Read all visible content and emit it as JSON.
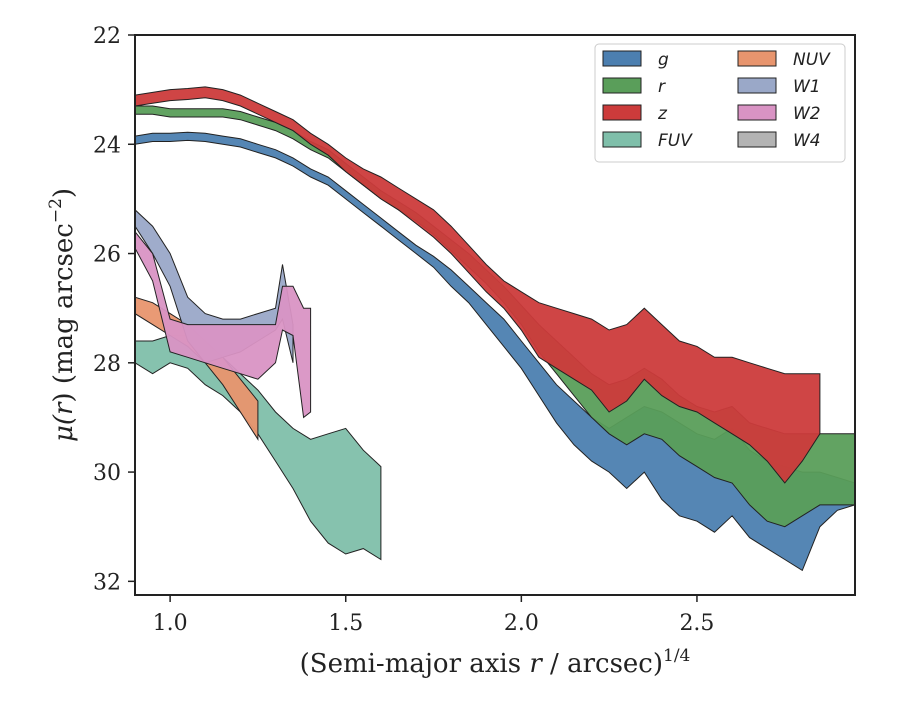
{
  "chart_data": {
    "type": "area",
    "xlabel": "(Semi-major axis r / arcsec)^1/4",
    "xlabel_parts": {
      "pre": "(Semi-major axis ",
      "var": "r",
      "post": " / arcsec)",
      "sup": "1/4"
    },
    "ylabel": "μ(r) (mag arcsec−2)",
    "ylabel_parts": {
      "mu": "μ(",
      "var": "r",
      "post": ") (mag arcsec",
      "sup": "−2",
      "close": ")"
    },
    "xlim": [
      0.9,
      2.95
    ],
    "ylim": [
      32.25,
      22
    ],
    "y_inverted": true,
    "xticks": [
      1.0,
      1.5,
      2.0,
      2.5
    ],
    "xtick_labels": [
      "1.0",
      "1.5",
      "2.0",
      "2.5"
    ],
    "yticks": [
      22,
      24,
      26,
      28,
      30,
      32
    ],
    "ytick_labels": [
      "22",
      "24",
      "26",
      "28",
      "30",
      "32"
    ],
    "grid": false,
    "legend_placement": "top-right",
    "legend_columns": 2,
    "series": [
      {
        "name": "g",
        "color": "#4c7fb0",
        "x": [
          0.9,
          0.95,
          1.0,
          1.05,
          1.1,
          1.15,
          1.2,
          1.25,
          1.3,
          1.35,
          1.4,
          1.45,
          1.5,
          1.55,
          1.6,
          1.65,
          1.7,
          1.75,
          1.8,
          1.85,
          1.9,
          1.95,
          2.0,
          2.05,
          2.1,
          2.15,
          2.2,
          2.25,
          2.3,
          2.35,
          2.4,
          2.45,
          2.5,
          2.55,
          2.6,
          2.65,
          2.7,
          2.75,
          2.8,
          2.85,
          2.9,
          2.95
        ],
        "lo": [
          23.85,
          23.8,
          23.8,
          23.78,
          23.8,
          23.85,
          23.9,
          24.0,
          24.1,
          24.25,
          24.45,
          24.6,
          24.85,
          25.1,
          25.35,
          25.6,
          25.85,
          26.05,
          26.3,
          26.6,
          26.9,
          27.2,
          27.6,
          28.0,
          28.4,
          28.7,
          29.0,
          29.2,
          29.0,
          28.8,
          28.9,
          29.1,
          29.3,
          29.4,
          29.2,
          29.6,
          29.8,
          29.9,
          30.0,
          30.0,
          30.1,
          30.2
        ],
        "hi": [
          24.0,
          23.95,
          23.95,
          23.93,
          23.95,
          24.0,
          24.05,
          24.15,
          24.25,
          24.4,
          24.6,
          24.75,
          25.0,
          25.25,
          25.5,
          25.75,
          26.0,
          26.25,
          26.6,
          26.9,
          27.3,
          27.7,
          28.1,
          28.6,
          29.1,
          29.5,
          29.8,
          30.0,
          30.3,
          30.0,
          30.5,
          30.8,
          30.9,
          31.1,
          30.8,
          31.2,
          31.4,
          31.6,
          31.8,
          31.0,
          30.7,
          30.6
        ]
      },
      {
        "name": "r",
        "color": "#5a9e5a",
        "x": [
          0.9,
          0.95,
          1.0,
          1.05,
          1.1,
          1.15,
          1.2,
          1.25,
          1.3,
          1.35,
          1.4,
          1.45,
          1.5,
          1.55,
          1.6,
          1.65,
          1.7,
          1.75,
          1.8,
          1.85,
          1.9,
          1.95,
          2.0,
          2.05,
          2.1,
          2.15,
          2.2,
          2.25,
          2.3,
          2.35,
          2.4,
          2.45,
          2.5,
          2.55,
          2.6,
          2.65,
          2.7,
          2.75,
          2.8,
          2.85,
          2.9,
          2.95
        ],
        "lo": [
          23.3,
          23.3,
          23.35,
          23.35,
          23.35,
          23.35,
          23.4,
          23.5,
          23.6,
          23.75,
          23.95,
          24.1,
          24.35,
          24.6,
          24.85,
          25.05,
          25.25,
          25.5,
          25.75,
          26.0,
          26.3,
          26.6,
          26.95,
          27.3,
          27.6,
          27.9,
          28.2,
          28.4,
          28.3,
          28.1,
          28.3,
          28.6,
          28.8,
          28.9,
          28.8,
          29.1,
          29.2,
          29.3,
          29.3,
          29.3,
          29.3,
          29.3
        ],
        "hi": [
          23.45,
          23.45,
          23.5,
          23.5,
          23.5,
          23.5,
          23.55,
          23.65,
          23.75,
          23.9,
          24.1,
          24.25,
          24.5,
          24.75,
          25.0,
          25.2,
          25.4,
          25.65,
          25.95,
          26.25,
          26.55,
          26.9,
          27.3,
          27.8,
          28.2,
          28.6,
          29.0,
          29.3,
          29.5,
          29.3,
          29.4,
          29.7,
          29.9,
          30.1,
          30.2,
          30.6,
          30.9,
          31.0,
          30.8,
          30.6,
          30.6,
          30.6
        ]
      },
      {
        "name": "z",
        "color": "#cc3b3b",
        "x": [
          0.9,
          0.95,
          1.0,
          1.05,
          1.1,
          1.15,
          1.2,
          1.25,
          1.3,
          1.35,
          1.4,
          1.45,
          1.5,
          1.55,
          1.6,
          1.65,
          1.7,
          1.75,
          1.8,
          1.85,
          1.9,
          1.95,
          2.0,
          2.05,
          2.1,
          2.15,
          2.2,
          2.25,
          2.3,
          2.35,
          2.4,
          2.45,
          2.5,
          2.55,
          2.6,
          2.65,
          2.7,
          2.75,
          2.8,
          2.85
        ],
        "lo": [
          23.1,
          23.05,
          23.0,
          22.98,
          22.95,
          23.0,
          23.1,
          23.25,
          23.4,
          23.55,
          23.8,
          24.0,
          24.25,
          24.45,
          24.6,
          24.8,
          25.0,
          25.2,
          25.5,
          25.85,
          26.2,
          26.5,
          26.7,
          26.9,
          27.0,
          27.1,
          27.2,
          27.4,
          27.3,
          27.0,
          27.3,
          27.6,
          27.7,
          27.9,
          27.9,
          28.0,
          28.1,
          28.2,
          28.2,
          28.2
        ],
        "hi": [
          23.3,
          23.25,
          23.2,
          23.18,
          23.15,
          23.2,
          23.3,
          23.45,
          23.6,
          23.75,
          24.0,
          24.2,
          24.5,
          24.75,
          25.0,
          25.2,
          25.45,
          25.7,
          26.0,
          26.35,
          26.7,
          27.0,
          27.4,
          27.9,
          28.1,
          28.3,
          28.5,
          28.9,
          28.7,
          28.3,
          28.6,
          28.8,
          28.9,
          29.1,
          29.3,
          29.5,
          29.8,
          30.2,
          29.8,
          29.3
        ]
      },
      {
        "name": "FUV",
        "color": "#7fbfaa",
        "x": [
          0.9,
          0.95,
          1.0,
          1.05,
          1.1,
          1.15,
          1.2,
          1.25,
          1.3,
          1.35,
          1.4,
          1.45,
          1.5,
          1.55,
          1.6
        ],
        "lo": [
          27.6,
          27.6,
          27.5,
          27.5,
          27.7,
          27.9,
          28.2,
          28.5,
          28.9,
          29.2,
          29.4,
          29.3,
          29.2,
          29.6,
          29.9
        ],
        "hi": [
          28.0,
          28.2,
          28.0,
          28.1,
          28.4,
          28.6,
          28.9,
          29.3,
          29.8,
          30.3,
          30.9,
          31.3,
          31.5,
          31.4,
          31.6
        ]
      },
      {
        "name": "NUV",
        "color": "#e8956e",
        "x": [
          0.9,
          0.95,
          1.0,
          1.05,
          1.1,
          1.15,
          1.2,
          1.25
        ],
        "lo": [
          26.8,
          26.9,
          27.1,
          27.3,
          27.6,
          27.9,
          28.3,
          28.7
        ],
        "hi": [
          27.1,
          27.3,
          27.5,
          27.7,
          28.0,
          28.4,
          28.9,
          29.4
        ]
      },
      {
        "name": "W1",
        "color": "#9aa8c8",
        "x": [
          0.9,
          0.95,
          1.0,
          1.05,
          1.1,
          1.15,
          1.2,
          1.25,
          1.3,
          1.32,
          1.35
        ],
        "lo": [
          25.2,
          25.5,
          26.0,
          26.8,
          27.1,
          27.2,
          27.2,
          27.1,
          27.0,
          26.2,
          27.3
        ],
        "hi": [
          25.5,
          26.0,
          26.6,
          27.6,
          28.0,
          27.9,
          27.8,
          27.6,
          27.4,
          27.2,
          28.0
        ]
      },
      {
        "name": "W2",
        "color": "#d993c4",
        "x": [
          0.9,
          0.95,
          1.0,
          1.05,
          1.1,
          1.15,
          1.2,
          1.25,
          1.3,
          1.32,
          1.35,
          1.38,
          1.4
        ],
        "lo": [
          25.6,
          26.0,
          27.2,
          27.3,
          27.3,
          27.3,
          27.3,
          27.3,
          27.3,
          26.6,
          26.6,
          27.0,
          27.0
        ],
        "hi": [
          25.9,
          26.5,
          27.8,
          27.9,
          28.0,
          28.1,
          28.2,
          28.3,
          28.0,
          27.4,
          27.5,
          29.0,
          28.9
        ]
      },
      {
        "name": "W4",
        "color": "#b3b3b3",
        "x": [],
        "lo": [],
        "hi": []
      }
    ]
  }
}
